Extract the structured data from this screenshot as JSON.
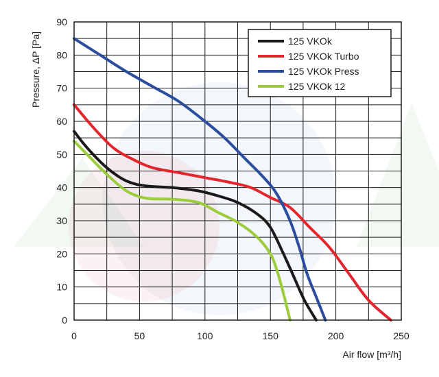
{
  "chart_data": {
    "type": "line",
    "title": "",
    "xlabel": "Air flow [m³/h]",
    "ylabel": "Pressure, ΔP [Pa]",
    "xlim": [
      0,
      250
    ],
    "ylim": [
      0,
      90
    ],
    "x_ticks": [
      0,
      50,
      100,
      150,
      200,
      250
    ],
    "y_ticks": [
      0,
      10,
      20,
      30,
      40,
      50,
      60,
      70,
      80,
      90
    ],
    "x_minor_step": 25,
    "y_minor_step": 5,
    "grid": true,
    "legend_position": "top-right",
    "series": [
      {
        "name": "125 VKOk",
        "color": "#1a1a1a",
        "points": [
          [
            0,
            57
          ],
          [
            10,
            52
          ],
          [
            25,
            46
          ],
          [
            40,
            42
          ],
          [
            55,
            40.5
          ],
          [
            75,
            40
          ],
          [
            95,
            39
          ],
          [
            110,
            37.5
          ],
          [
            125,
            35.5
          ],
          [
            140,
            32
          ],
          [
            150,
            28
          ],
          [
            160,
            20
          ],
          [
            168,
            13
          ],
          [
            176,
            6
          ],
          [
            185,
            0
          ]
        ]
      },
      {
        "name": "125 VKOk Turbo",
        "color": "#e3262e",
        "points": [
          [
            0,
            65
          ],
          [
            15,
            58
          ],
          [
            30,
            52
          ],
          [
            45,
            48.5
          ],
          [
            60,
            46
          ],
          [
            80,
            44.5
          ],
          [
            100,
            43
          ],
          [
            120,
            41.5
          ],
          [
            135,
            40
          ],
          [
            150,
            37
          ],
          [
            165,
            34
          ],
          [
            180,
            28
          ],
          [
            195,
            22
          ],
          [
            210,
            14
          ],
          [
            225,
            6
          ],
          [
            242,
            0
          ]
        ]
      },
      {
        "name": "125 VKOk Press",
        "color": "#2a4d9e",
        "points": [
          [
            0,
            85
          ],
          [
            20,
            80
          ],
          [
            40,
            75
          ],
          [
            60,
            70.5
          ],
          [
            80,
            66
          ],
          [
            100,
            60
          ],
          [
            115,
            55
          ],
          [
            130,
            49
          ],
          [
            145,
            43
          ],
          [
            155,
            38
          ],
          [
            165,
            30
          ],
          [
            172,
            22
          ],
          [
            178,
            14
          ],
          [
            186,
            6
          ],
          [
            192,
            0
          ]
        ]
      },
      {
        "name": "125 VKOk 12",
        "color": "#9ccc3c",
        "points": [
          [
            0,
            54
          ],
          [
            10,
            50
          ],
          [
            25,
            44
          ],
          [
            40,
            39
          ],
          [
            55,
            36.8
          ],
          [
            75,
            36.5
          ],
          [
            95,
            35.5
          ],
          [
            110,
            32.5
          ],
          [
            125,
            29.5
          ],
          [
            140,
            25
          ],
          [
            150,
            20
          ],
          [
            155,
            15
          ],
          [
            160,
            8
          ],
          [
            165,
            0
          ]
        ]
      }
    ]
  }
}
